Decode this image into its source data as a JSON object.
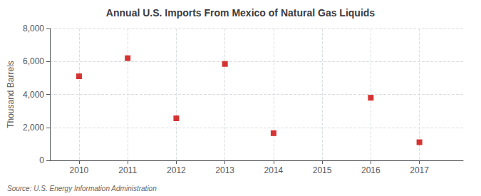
{
  "chart_data": {
    "type": "scatter",
    "title": "Annual U.S. Imports From Mexico of Natural Gas Liquids",
    "ylabel": "Thousand Barrels",
    "source": "Source: U.S. Energy Information Administration",
    "x": [
      2010,
      2011,
      2012,
      2013,
      2014,
      2015,
      2016,
      2017
    ],
    "values": [
      5100,
      6200,
      2550,
      5850,
      1650,
      null,
      3800,
      1100
    ],
    "color": "#cc0000",
    "marker": "square",
    "xlim": [
      2009.4,
      2017.9
    ],
    "xticks": [
      2010,
      2011,
      2012,
      2013,
      2014,
      2015,
      2016,
      2017
    ],
    "ylim": [
      0,
      8000
    ],
    "yticks": [
      0,
      {
        "value": 2000,
        "label": "2,000"
      },
      {
        "value": 4000,
        "label": "4,000"
      },
      {
        "value": 6000,
        "label": "6,000"
      },
      {
        "value": 8000,
        "label": "8,000"
      }
    ],
    "grid": true
  }
}
